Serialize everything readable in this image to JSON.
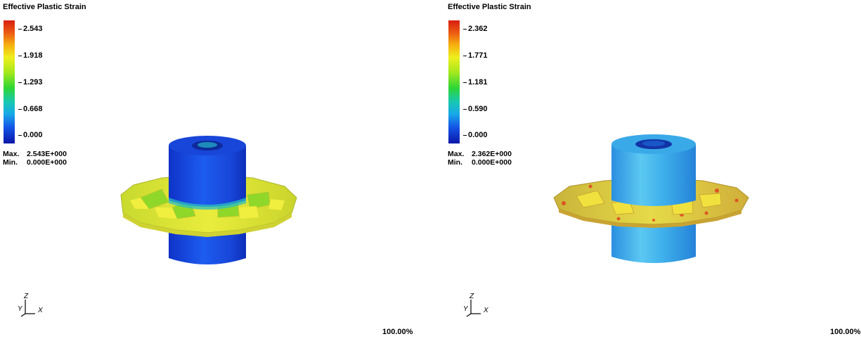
{
  "panels": [
    {
      "legend_title": "Effective Plastic Strain",
      "ticks": [
        "2.543",
        "1.918",
        "1.293",
        "0.668",
        "0.000"
      ],
      "max_label": "Max.",
      "max_value": "2.543E+000",
      "min_label": "Min.",
      "min_value": "0.000E+000",
      "axes": {
        "z": "Z",
        "y": "Y",
        "x": "X"
      },
      "zoom": "100.00%"
    },
    {
      "legend_title": "Effective Plastic Strain",
      "ticks": [
        "2.362",
        "1.771",
        "1.181",
        "0.590",
        "0.000"
      ],
      "max_label": "Max.",
      "max_value": "2.362E+000",
      "min_label": "Min.",
      "min_value": "0.000E+000",
      "axes": {
        "z": "Z",
        "y": "Y",
        "x": "X"
      },
      "zoom": "100.00%"
    }
  ],
  "colors": {
    "scale_max": "#d81e10",
    "scale_min": "#0a16a8",
    "left_body": "#1a4fe6",
    "right_body": "#3fb7ee",
    "flange": "#dfe63a"
  }
}
